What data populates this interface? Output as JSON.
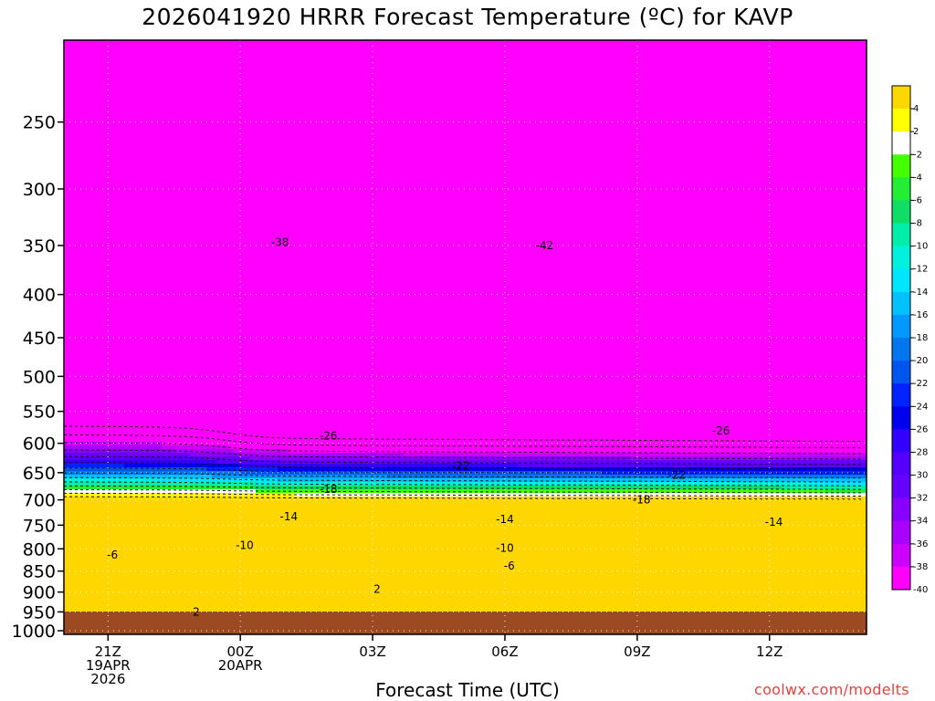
{
  "chart_data": {
    "type": "heatmap",
    "title": "2026041920 HRRR Forecast Temperature (ºC) for KAVP",
    "xlabel": "Forecast Time (UTC)",
    "ylabel": "",
    "y_axis": {
      "scale": "log",
      "reversed": true,
      "ylim": [
        200,
        1010
      ],
      "ticks": [
        250,
        300,
        350,
        400,
        450,
        500,
        550,
        600,
        650,
        700,
        750,
        800,
        850,
        900,
        950,
        1000
      ]
    },
    "x_axis": {
      "xlim_hours": [
        -1,
        17.2
      ],
      "ticks": [
        {
          "hour": 0,
          "lines": [
            "21Z",
            "19APR",
            "2026"
          ]
        },
        {
          "hour": 3,
          "lines": [
            "00Z",
            "20APR"
          ]
        },
        {
          "hour": 6,
          "lines": [
            "03Z"
          ]
        },
        {
          "hour": 9,
          "lines": [
            "06Z"
          ]
        },
        {
          "hour": 12,
          "lines": [
            "09Z"
          ]
        },
        {
          "hour": 15,
          "lines": [
            "12Z"
          ]
        }
      ]
    },
    "grid": true,
    "colorbar": {
      "labels": [
        "4",
        "2",
        "-2",
        "-4",
        "-6",
        "-8",
        "-10",
        "-12",
        "-14",
        "-16",
        "-18",
        "-20",
        "-22",
        "-24",
        "-26",
        "-28",
        "-30",
        "-32",
        "-34",
        "-36",
        "-38",
        "-40"
      ],
      "colors": [
        "#ffd700",
        "#ffff00",
        "#ffffff",
        "#44ff00",
        "#22ee33",
        "#10dd66",
        "#00eeaa",
        "#00f0dd",
        "#00e6ff",
        "#00c0ff",
        "#0099ff",
        "#0077ee",
        "#0055ee",
        "#0022ff",
        "#0000ee",
        "#3300ff",
        "#5500ff",
        "#6600ff",
        "#8800ff",
        "#aa00ff",
        "#cc00ff",
        "#ff00ff"
      ]
    },
    "contour_labels": [
      {
        "text": "-38",
        "hour": 3.9,
        "p": 347
      },
      {
        "text": "-42",
        "hour": 9.9,
        "p": 350
      },
      {
        "text": "-26",
        "hour": 5.0,
        "p": 588
      },
      {
        "text": "-26",
        "hour": 13.9,
        "p": 580
      },
      {
        "text": "-22",
        "hour": 8.0,
        "p": 638
      },
      {
        "text": "-22",
        "hour": 12.9,
        "p": 654
      },
      {
        "text": "-18",
        "hour": 5.0,
        "p": 680
      },
      {
        "text": "-18",
        "hour": 12.1,
        "p": 700
      },
      {
        "text": "-14",
        "hour": 4.1,
        "p": 733
      },
      {
        "text": "-14",
        "hour": 9.0,
        "p": 738
      },
      {
        "text": "-14",
        "hour": 15.1,
        "p": 744
      },
      {
        "text": "-10",
        "hour": 3.1,
        "p": 792
      },
      {
        "text": "-10",
        "hour": 9.0,
        "p": 798
      },
      {
        "text": "-6",
        "hour": 0.1,
        "p": 813
      },
      {
        "text": "-6",
        "hour": 9.1,
        "p": 838
      },
      {
        "text": "2",
        "hour": 6.1,
        "p": 893
      },
      {
        "text": "2",
        "hour": 2.0,
        "p": 950
      }
    ]
  },
  "credit": "coolwx.com/modelts"
}
